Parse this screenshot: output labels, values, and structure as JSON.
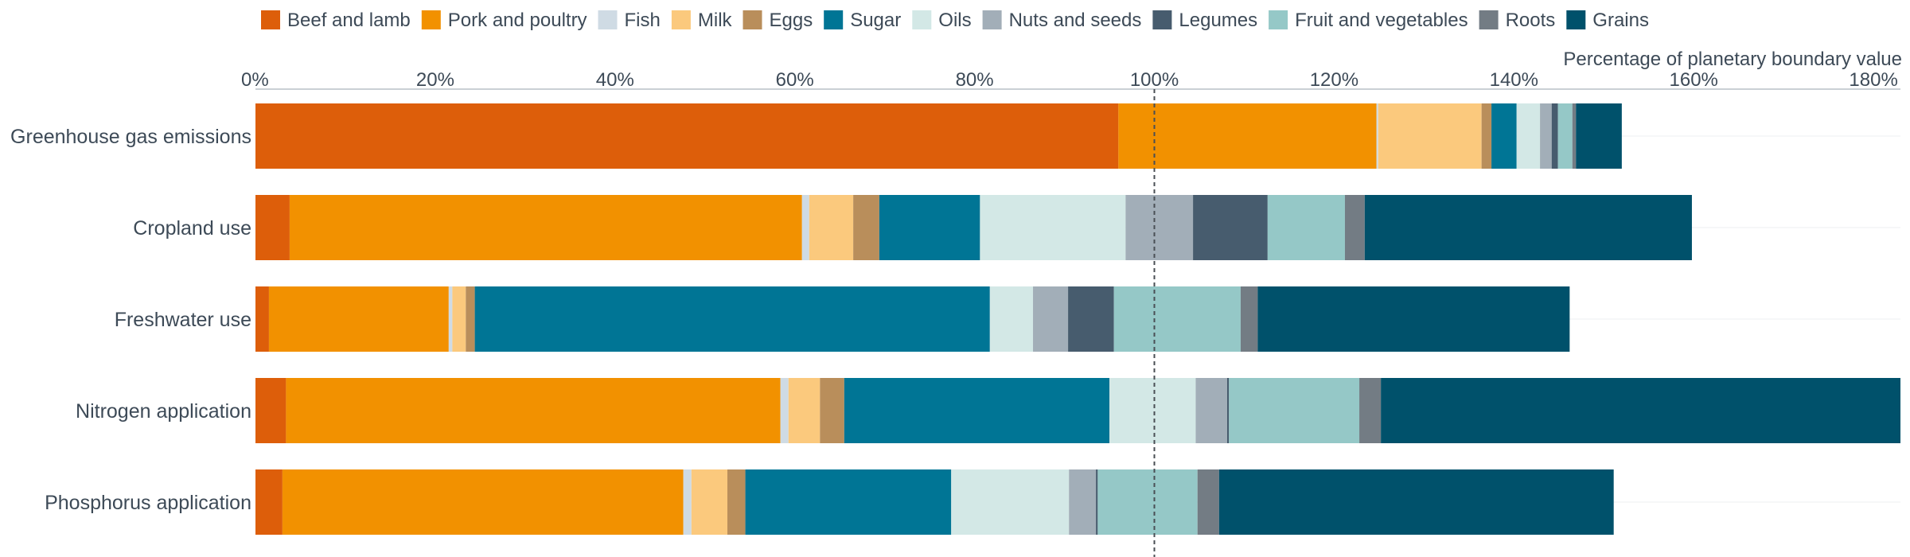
{
  "chart_data": {
    "type": "bar",
    "orientation": "horizontal",
    "stacked": true,
    "xlabel": "Percentage of planetary boundary value",
    "xlim": [
      0,
      183
    ],
    "xticks": [
      "0%",
      "20%",
      "40%",
      "60%",
      "80%",
      "100%",
      "120%",
      "140%",
      "160%",
      "180%"
    ],
    "xtick_values": [
      0,
      20,
      40,
      60,
      80,
      100,
      120,
      140,
      160,
      180
    ],
    "reference_line": 100,
    "legend_position": "top",
    "categories": [
      "Greenhouse gas emissions",
      "Cropland use",
      "Freshwater use",
      "Nitrogen application",
      "Phosphorus application"
    ],
    "series": [
      {
        "name": "Beef and lamb",
        "color": "#dd5e0a",
        "values": [
          96,
          3.8,
          1.5,
          3.4,
          3.0
        ]
      },
      {
        "name": "Pork and poultry",
        "color": "#f29100",
        "values": [
          28.7,
          57,
          20,
          55,
          44.6
        ]
      },
      {
        "name": "Fish",
        "color": "#cfdbe4",
        "values": [
          0.2,
          0.8,
          0.4,
          0.9,
          0.9
        ]
      },
      {
        "name": "Milk",
        "color": "#fbc97d",
        "values": [
          11.5,
          4.9,
          1.5,
          3.5,
          4.0
        ]
      },
      {
        "name": "Eggs",
        "color": "#b98e5b",
        "values": [
          1.1,
          2.9,
          1.0,
          2.7,
          2.0
        ]
      },
      {
        "name": "Sugar",
        "color": "#007595",
        "values": [
          2.8,
          11.2,
          57.3,
          29.5,
          22.9
        ]
      },
      {
        "name": "Oils",
        "color": "#d3e8e6",
        "values": [
          2.6,
          16.2,
          4.8,
          9.6,
          13.1
        ]
      },
      {
        "name": "Nuts and seeds",
        "color": "#a2aeb8",
        "values": [
          1.3,
          7.5,
          3.9,
          3.5,
          3.0
        ]
      },
      {
        "name": "Legumes",
        "color": "#475c6e",
        "values": [
          0.7,
          8.3,
          5.1,
          0.2,
          0.2
        ]
      },
      {
        "name": "Fruit and vegetables",
        "color": "#95c8c7",
        "values": [
          1.6,
          8.6,
          14.1,
          14.5,
          11.1
        ]
      },
      {
        "name": "Roots",
        "color": "#737c84",
        "values": [
          0.4,
          2.2,
          1.9,
          2.4,
          2.4
        ]
      },
      {
        "name": "Grains",
        "color": "#00516b",
        "values": [
          5.1,
          36.4,
          34.7,
          58.1,
          43.9
        ]
      }
    ]
  }
}
